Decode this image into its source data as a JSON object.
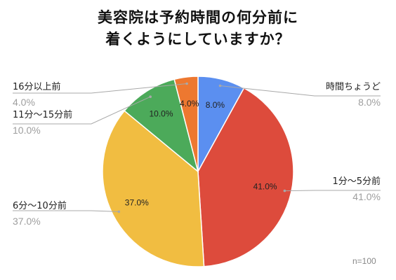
{
  "chart_data": {
    "type": "pie",
    "title": [
      "美容院は予約時間の何分前に",
      "着くようにしていますか？"
    ],
    "slices": [
      {
        "label": "時間ちょうど",
        "value": 8.0,
        "display": "8.0%",
        "color": "#5b8ff0"
      },
      {
        "label": "1分～5分前",
        "value": 41.0,
        "display": "41.0%",
        "color": "#dd4b3c"
      },
      {
        "label": "6分～10分前",
        "value": 37.0,
        "display": "37.0%",
        "color": "#f1bd41"
      },
      {
        "label": "11分～15分前",
        "value": 10.0,
        "display": "10.0%",
        "color": "#4caa5a"
      },
      {
        "label": "16分以上前",
        "value": 4.0,
        "display": "4.0%",
        "color": "#ed7830"
      }
    ],
    "legend": "callout labels",
    "sample_note": "n=100"
  }
}
